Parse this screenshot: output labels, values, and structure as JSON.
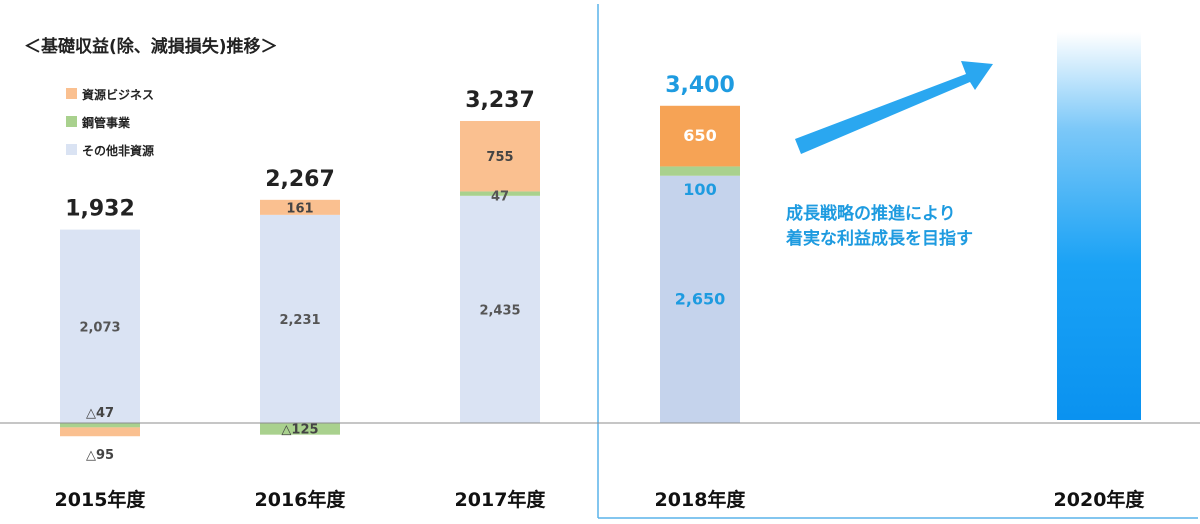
{
  "title": "＜基礎収益(除、減損損失)推移＞",
  "legend": [
    {
      "label": "資源ビジネス",
      "color": "#fac090"
    },
    {
      "label": "鋼管事業",
      "color": "#a9d18e"
    },
    {
      "label": "その他非資源",
      "color": "#dae3f3"
    }
  ],
  "message": [
    "成長戦略の推進により",
    "着実な利益成長を目指す"
  ],
  "colors": {
    "resource": "#fac090",
    "steel": "#a9d18e",
    "other": "#dae3f3",
    "resource_forecast": "#f6a355",
    "steel_forecast": "#a9d18e",
    "other_forecast": "#c5d3ec",
    "target": "#0a96f5",
    "arrow": "#2aa7f0",
    "divider": "#5ab4ea"
  },
  "chart_data": {
    "type": "bar",
    "stacked": true,
    "categories": [
      "2015年度",
      "2016年度",
      "2017年度",
      "2018年度",
      "2020年度"
    ],
    "series": [
      {
        "name": "その他非資源",
        "values": [
          2073,
          2231,
          2435,
          2650,
          null
        ]
      },
      {
        "name": "鋼管事業",
        "values": [
          -47,
          -125,
          47,
          100,
          null
        ]
      },
      {
        "name": "資源ビジネス",
        "values": [
          -95,
          161,
          755,
          650,
          null
        ]
      }
    ],
    "totals": [
      1932,
      2267,
      3237,
      3400,
      null
    ],
    "value_labels": {
      "その他非資源": [
        "2,073",
        "2,231",
        "2,435",
        "2,650",
        ""
      ],
      "鋼管事業": [
        "△47",
        "△125",
        "47",
        "100",
        ""
      ],
      "資源ビジネス": [
        "△95",
        "161",
        "755",
        "650",
        ""
      ]
    },
    "total_labels": [
      "1,932",
      "2,267",
      "3,237",
      "3,400",
      ""
    ],
    "forecast_from_index": 3,
    "target_index": 4,
    "ylim": [
      -250,
      4600
    ]
  }
}
